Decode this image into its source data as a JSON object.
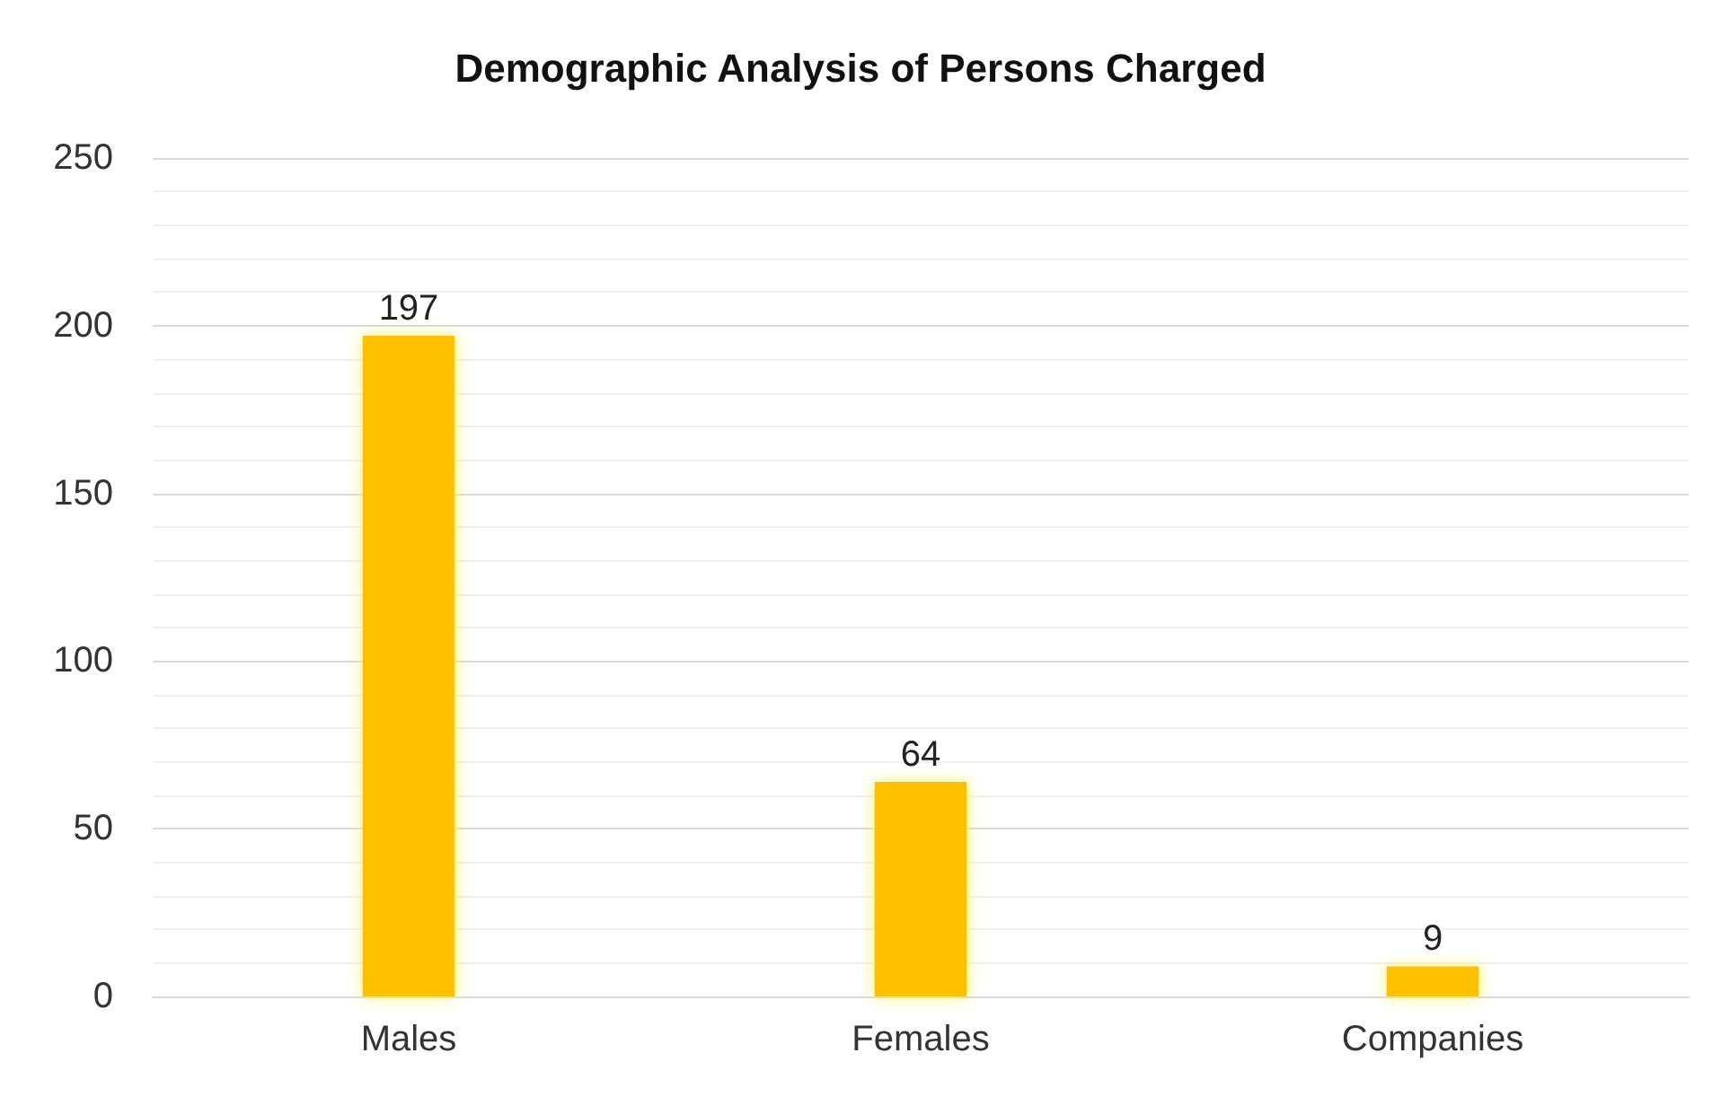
{
  "chart_data": {
    "type": "bar",
    "title": "Demographic Analysis of Persons Charged",
    "categories": [
      "Males",
      "Females",
      "Companies"
    ],
    "values": [
      197,
      64,
      9
    ],
    "color": "#ffc000",
    "ylim": [
      0,
      250
    ],
    "yticks": [
      0,
      50,
      100,
      150,
      200,
      250
    ],
    "grid": "y",
    "data_labels": true
  }
}
